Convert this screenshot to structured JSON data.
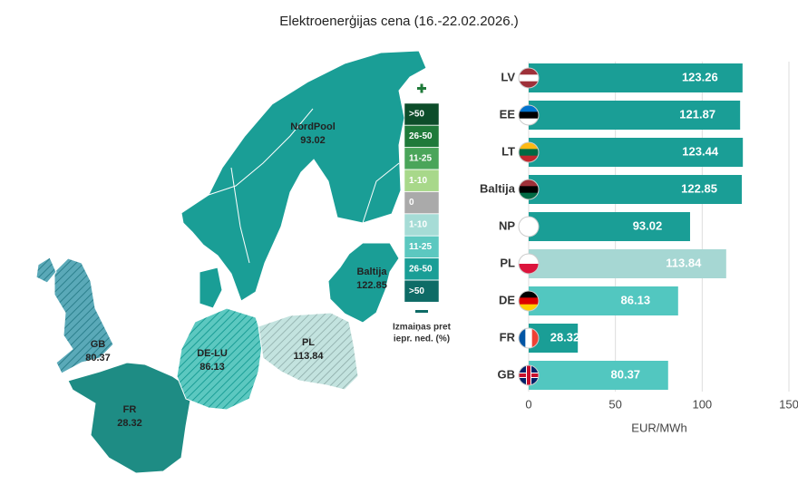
{
  "title": "Elektroenerģijas cena (16.-22.02.2026.)",
  "map": {
    "regions": [
      {
        "name": "NordPool",
        "value": 93.02
      },
      {
        "name": "Baltija",
        "value": 122.85
      },
      {
        "name": "GB",
        "value": 80.37
      },
      {
        "name": "DE-LU",
        "value": 86.13
      },
      {
        "name": "PL",
        "value": 113.84
      },
      {
        "name": "FR",
        "value": 28.32
      }
    ]
  },
  "legend": {
    "items": [
      {
        "label": ">50",
        "color": "#0d4d2a"
      },
      {
        "label": "26-50",
        "color": "#1f7a3a"
      },
      {
        "label": "11-25",
        "color": "#4aa55a"
      },
      {
        "label": "1-10",
        "color": "#a8d88a"
      },
      {
        "label": "0",
        "color": "#aaaaaa"
      },
      {
        "label": "1-10",
        "color": "#a6dcd6"
      },
      {
        "label": "11-25",
        "color": "#5cc8c0"
      },
      {
        "label": "26-50",
        "color": "#1a9e96"
      },
      {
        "label": ">50",
        "color": "#0e6b66"
      }
    ],
    "caption": [
      "Izmaiņas pret",
      "iepr. ned. (%)"
    ]
  },
  "chart_data": {
    "type": "bar",
    "orientation": "horizontal",
    "categories": [
      "LV",
      "EE",
      "LT",
      "Baltija",
      "NP",
      "PL",
      "DE",
      "FR",
      "GB"
    ],
    "values": [
      123.26,
      121.87,
      123.44,
      122.85,
      93.02,
      113.84,
      86.13,
      28.32,
      80.37
    ],
    "colors": [
      "#1a9e96",
      "#1a9e96",
      "#1a9e96",
      "#1a9e96",
      "#1a9e96",
      "#a6d7d3",
      "#52c7c0",
      "#1a9e96",
      "#52c7c0"
    ],
    "xlim": [
      0,
      150
    ],
    "xticks": [
      0,
      50,
      100,
      150
    ],
    "xlabel": "EUR/MWh",
    "grid": true
  }
}
